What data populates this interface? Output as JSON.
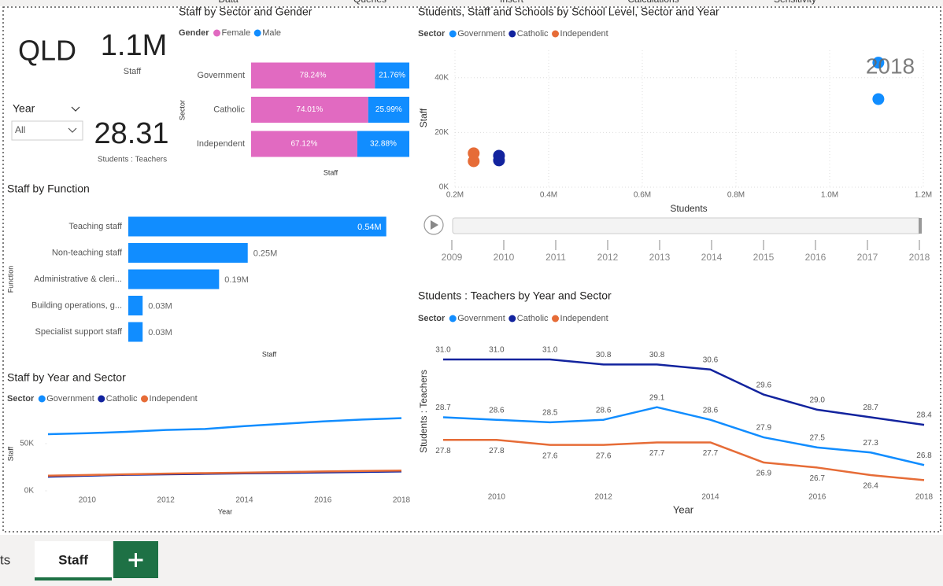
{
  "ribbon": [
    "Data",
    "Queries",
    "Insert",
    "Calculations",
    "Sensitivity"
  ],
  "cards": {
    "region": "QLD",
    "staff": {
      "value": "1.1M",
      "label": "Staff"
    },
    "ratio": {
      "value": "28.31",
      "label": "Students : Teachers"
    }
  },
  "slicer": {
    "title": "Year",
    "selection": "All"
  },
  "tabs": [
    "ts",
    "Staff"
  ],
  "chart_data": [
    {
      "type": "stacked_bar_h",
      "title": "Staff by Sector and Gender",
      "legend_title": "Gender",
      "categories": [
        "Government",
        "Catholic",
        "Independent"
      ],
      "series": [
        {
          "name": "Female",
          "color": "#e16ac1",
          "values": [
            78.24,
            74.01,
            67.12
          ],
          "value_labels": [
            "78.24%",
            "74.01%",
            "67.12%"
          ]
        },
        {
          "name": "Male",
          "color": "#118dff",
          "values": [
            21.76,
            25.99,
            32.88
          ],
          "value_labels": [
            "21.76%",
            "25.99%",
            "32.88%"
          ]
        }
      ],
      "xlim": [
        0,
        100
      ],
      "x_label": "Staff",
      "y_label": "Sector"
    },
    {
      "type": "scatter",
      "title": "Students, Staff and Schools by School Level, Sector and Year",
      "legend_title": "Sector",
      "series": [
        {
          "name": "Government",
          "color": "#118dff",
          "x": [
            1104000,
            1104000
          ],
          "values": [
            45500,
            32200
          ]
        },
        {
          "name": "Catholic",
          "color": "#12239e",
          "x": [
            294000,
            294000
          ],
          "values": [
            11500,
            9800
          ]
        },
        {
          "name": "Independent",
          "color": "#e66c37",
          "x": [
            240000,
            240000
          ],
          "values": [
            12400,
            9500
          ]
        }
      ],
      "xlim": [
        200000,
        1200000
      ],
      "xticks": [
        {
          "value": 200000,
          "label": "0.2M"
        },
        {
          "value": 400000,
          "label": "0.4M"
        },
        {
          "value": 600000,
          "label": "0.6M"
        },
        {
          "value": 800000,
          "label": "0.8M"
        },
        {
          "value": 1000000,
          "label": "1.0M"
        },
        {
          "value": 1200000,
          "label": "1.2M"
        }
      ],
      "ylim": [
        0,
        50000
      ],
      "yticks": [
        {
          "value": 0,
          "label": "0K"
        },
        {
          "value": 20000,
          "label": "20K"
        },
        {
          "value": 40000,
          "label": "40K"
        }
      ],
      "grid": true,
      "x_label": "Students",
      "y_label": "Staff",
      "play_axis": {
        "years": [
          2009,
          2010,
          2011,
          2012,
          2013,
          2014,
          2015,
          2016,
          2017,
          2018
        ],
        "current": 2018
      }
    },
    {
      "type": "bar_h",
      "title": "Staff by Function",
      "categories": [
        "Teaching staff",
        "Non-teaching staff",
        "Administrative & cleri...",
        "Building operations, g...",
        "Specialist support staff"
      ],
      "values": [
        540000,
        250000,
        190000,
        30000,
        30000
      ],
      "value_labels": [
        "0.54M",
        "0.25M",
        "0.19M",
        "0.03M",
        "0.03M"
      ],
      "color": "#118dff",
      "xlim": [
        0,
        580000
      ],
      "x_label": "Staff",
      "y_label": "Function"
    },
    {
      "type": "line",
      "title": "Staff by Year and Sector",
      "legend_title": "Sector",
      "x": [
        2009,
        2010,
        2011,
        2012,
        2013,
        2014,
        2015,
        2016,
        2017,
        2018
      ],
      "series": [
        {
          "name": "Government",
          "color": "#118dff",
          "values": [
            60000,
            61000,
            62500,
            64500,
            65500,
            68500,
            71000,
            73500,
            75500,
            77000
          ]
        },
        {
          "name": "Catholic",
          "color": "#12239e",
          "values": [
            15000,
            16000,
            17000,
            17500,
            18000,
            18500,
            19000,
            19500,
            20000,
            20500
          ]
        },
        {
          "name": "Independent",
          "color": "#e66c37",
          "values": [
            16000,
            16800,
            17500,
            18200,
            18800,
            19300,
            19900,
            20500,
            21000,
            21500
          ]
        }
      ],
      "xlim": [
        2009,
        2018
      ],
      "xticks": [
        2010,
        2012,
        2014,
        2016,
        2018
      ],
      "ylim": [
        0,
        85000
      ],
      "yticks": [
        {
          "value": 0,
          "label": "0K"
        },
        {
          "value": 50000,
          "label": "50K"
        }
      ],
      "x_label": "Year",
      "y_label": "Staff"
    },
    {
      "type": "line",
      "title": "Students : Teachers by Year and Sector",
      "legend_title": "Sector",
      "x": [
        2009,
        2010,
        2011,
        2012,
        2013,
        2014,
        2015,
        2016,
        2017,
        2018
      ],
      "series": [
        {
          "name": "Government",
          "color": "#118dff",
          "values": [
            28.7,
            28.6,
            28.5,
            28.6,
            29.1,
            28.6,
            27.9,
            27.5,
            27.3,
            26.8
          ],
          "value_labels": [
            "28.7",
            "28.6",
            "28.5",
            "28.6",
            "29.1",
            "28.6",
            "27.9",
            "27.5",
            "27.3",
            "26.8"
          ]
        },
        {
          "name": "Catholic",
          "color": "#12239e",
          "values": [
            31.0,
            31.0,
            31.0,
            30.8,
            30.8,
            30.6,
            29.6,
            29.0,
            28.7,
            28.4
          ],
          "value_labels": [
            "31.0",
            "31.0",
            "31.0",
            "30.8",
            "30.8",
            "30.6",
            "29.6",
            "29.0",
            "28.7",
            "28.4"
          ]
        },
        {
          "name": "Independent",
          "color": "#e66c37",
          "values": [
            27.8,
            27.8,
            27.6,
            27.6,
            27.7,
            27.7,
            26.9,
            26.7,
            26.4,
            26.2
          ],
          "value_labels": [
            "27.8",
            "27.8",
            "27.6",
            "27.6",
            "27.7",
            "27.7",
            "26.9",
            "26.7",
            "26.4",
            null
          ]
        }
      ],
      "xlim": [
        2009,
        2018
      ],
      "xticks": [
        2010,
        2012,
        2014,
        2016,
        2018
      ],
      "ylim": [
        25.9,
        31.5
      ],
      "x_label": "Year",
      "y_label": "Students : Teachers"
    }
  ]
}
